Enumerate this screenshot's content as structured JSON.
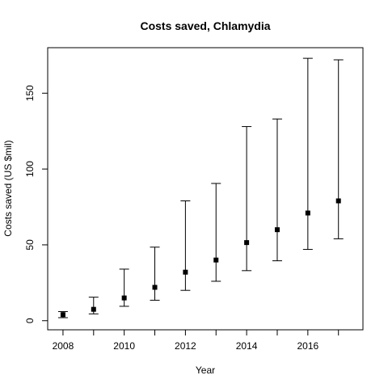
{
  "chart_data": {
    "type": "scatter",
    "title": "Costs saved, Chlamydia",
    "xlabel": "Year",
    "ylabel": "Costs saved (US $mil)",
    "xlim": [
      2007.5,
      2017.8
    ],
    "ylim": [
      -6,
      180
    ],
    "x_ticks": [
      2008,
      2010,
      2012,
      2014,
      2016
    ],
    "x_minor_ticks": [
      2009,
      2011,
      2013,
      2015,
      2017
    ],
    "y_ticks": [
      0,
      50,
      100,
      150
    ],
    "grid": false,
    "legend": "none",
    "marker": "filled-square",
    "series": [
      {
        "x": [
          2008,
          2009,
          2010,
          2011,
          2012,
          2013,
          2014,
          2015,
          2016,
          2017
        ],
        "values": [
          4,
          7.5,
          15,
          22,
          32,
          40,
          51.5,
          60,
          71,
          79
        ],
        "lower": [
          2,
          4.5,
          9.5,
          13.5,
          20,
          26,
          33,
          39.5,
          47,
          54
        ],
        "upper": [
          6,
          15.5,
          34,
          48.5,
          79,
          90.5,
          128,
          133,
          173,
          172
        ]
      }
    ],
    "colors": {
      "points": "#000000",
      "errorbars": "#000000",
      "axes": "#000000"
    }
  }
}
